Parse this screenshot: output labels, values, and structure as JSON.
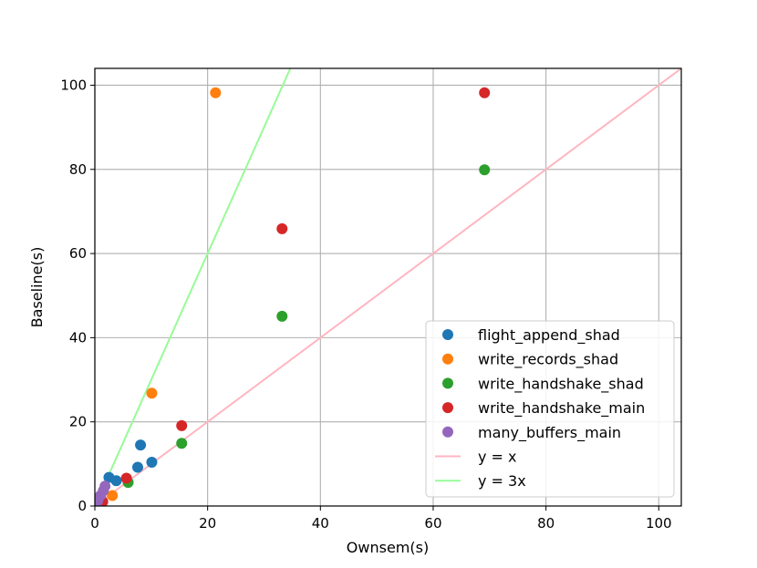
{
  "chart_data": {
    "type": "scatter",
    "title": "",
    "xlabel": "Ownsem(s)",
    "ylabel": "Baseline(s)",
    "xlim": [
      0,
      104
    ],
    "ylim": [
      0,
      104
    ],
    "xticks": [
      0,
      20,
      40,
      60,
      80,
      100
    ],
    "yticks": [
      0,
      20,
      40,
      60,
      80,
      100
    ],
    "grid": true,
    "legend_placement": "lower-right",
    "series": [
      {
        "name": "flight_append_shad",
        "color": "#1f77b4",
        "points": [
          [
            2.5,
            6.8
          ],
          [
            3.8,
            6.0
          ],
          [
            7.6,
            9.2
          ],
          [
            8.1,
            14.5
          ],
          [
            10.1,
            10.4
          ]
        ]
      },
      {
        "name": "write_records_shad",
        "color": "#ff7f0e",
        "points": [
          [
            3.1,
            2.5
          ],
          [
            10.1,
            26.8
          ],
          [
            21.4,
            98.2
          ]
        ]
      },
      {
        "name": "write_handshake_shad",
        "color": "#2ca02c",
        "points": [
          [
            5.9,
            5.6
          ],
          [
            15.4,
            14.9
          ],
          [
            33.2,
            45.1
          ],
          [
            69.1,
            79.9
          ]
        ]
      },
      {
        "name": "write_handshake_main",
        "color": "#d62728",
        "points": [
          [
            1.4,
            1.0
          ],
          [
            5.6,
            6.6
          ],
          [
            15.4,
            19.1
          ],
          [
            33.2,
            65.9
          ],
          [
            69.1,
            98.2
          ]
        ]
      },
      {
        "name": "many_buffers_main",
        "color": "#9467bd",
        "points": [
          [
            0.5,
            1.2
          ],
          [
            1.0,
            2.5
          ],
          [
            1.5,
            3.6
          ],
          [
            1.8,
            4.7
          ]
        ]
      }
    ],
    "reference_lines": [
      {
        "name": "y = x",
        "color": "#ffb6c1",
        "slope": 1
      },
      {
        "name": "y = 3x",
        "color": "#98fb98",
        "slope": 3
      }
    ]
  }
}
